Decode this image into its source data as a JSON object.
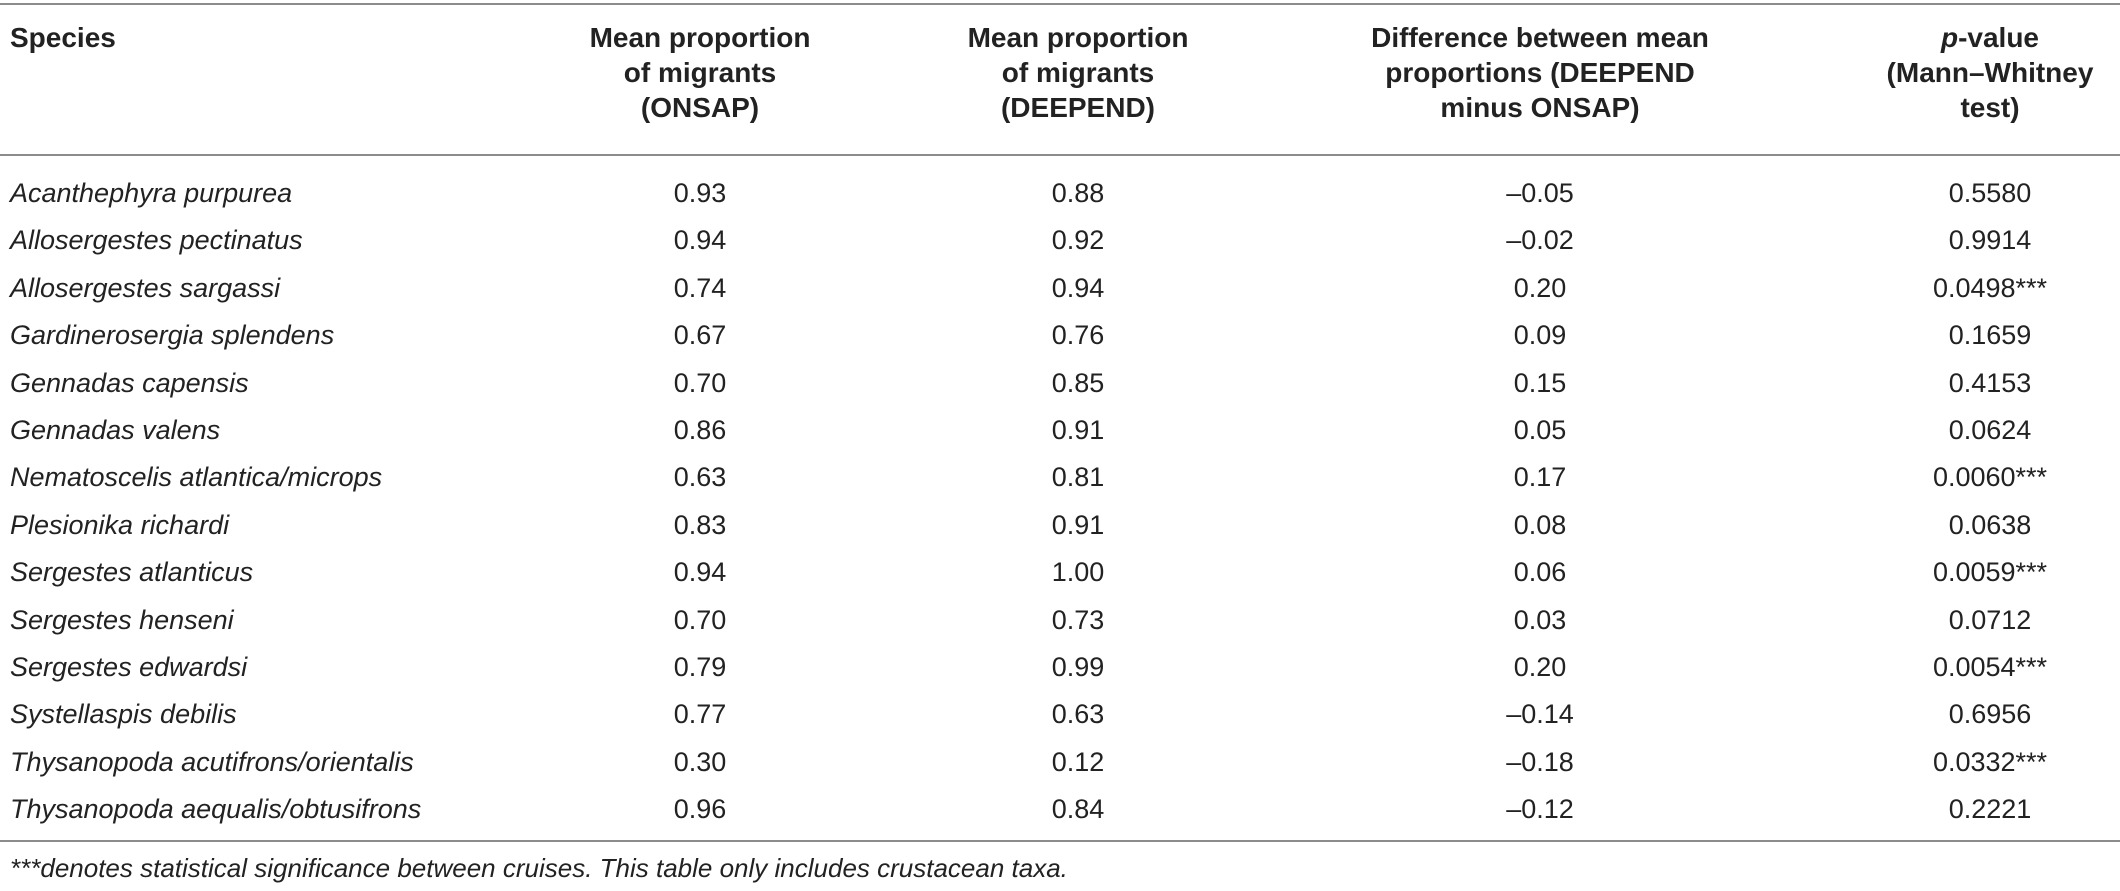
{
  "headers": {
    "species": "Species",
    "onsap": [
      "Mean proportion",
      "of migrants",
      "(ONSAP)"
    ],
    "deepend": [
      "Mean proportion",
      "of migrants",
      "(DEEPEND)"
    ],
    "difference": [
      "Difference between mean",
      "proportions (DEEPEND",
      "minus ONSAP)"
    ],
    "pvalue_italic": "p",
    "pvalue": [
      "-value",
      "(Mann–Whitney",
      "test)"
    ]
  },
  "rows": [
    {
      "species": "Acanthephyra purpurea",
      "onsap": "0.93",
      "deepend": "0.88",
      "diff": "–0.05",
      "p": "0.5580"
    },
    {
      "species": "Allosergestes pectinatus",
      "onsap": "0.94",
      "deepend": "0.92",
      "diff": "–0.02",
      "p": "0.9914"
    },
    {
      "species": "Allosergestes sargassi",
      "onsap": "0.74",
      "deepend": "0.94",
      "diff": "0.20",
      "p": "0.0498***"
    },
    {
      "species": "Gardinerosergia splendens",
      "onsap": "0.67",
      "deepend": "0.76",
      "diff": "0.09",
      "p": "0.1659"
    },
    {
      "species": "Gennadas capensis",
      "onsap": "0.70",
      "deepend": "0.85",
      "diff": "0.15",
      "p": "0.4153"
    },
    {
      "species": "Gennadas valens",
      "onsap": "0.86",
      "deepend": "0.91",
      "diff": "0.05",
      "p": "0.0624"
    },
    {
      "species": "Nematoscelis atlantica/microps",
      "onsap": "0.63",
      "deepend": "0.81",
      "diff": "0.17",
      "p": "0.0060***"
    },
    {
      "species": "Plesionika richardi",
      "onsap": "0.83",
      "deepend": "0.91",
      "diff": "0.08",
      "p": "0.0638"
    },
    {
      "species": "Sergestes atlanticus",
      "onsap": "0.94",
      "deepend": "1.00",
      "diff": "0.06",
      "p": "0.0059***"
    },
    {
      "species": "Sergestes henseni",
      "onsap": "0.70",
      "deepend": "0.73",
      "diff": "0.03",
      "p": "0.0712"
    },
    {
      "species": "Sergestes edwardsi",
      "onsap": "0.79",
      "deepend": "0.99",
      "diff": "0.20",
      "p": "0.0054***"
    },
    {
      "species": "Systellaspis debilis",
      "onsap": "0.77",
      "deepend": "0.63",
      "diff": "–0.14",
      "p": "0.6956"
    },
    {
      "species": "Thysanopoda acutifrons/orientalis",
      "onsap": "0.30",
      "deepend": "0.12",
      "diff": "–0.18",
      "p": "0.0332***"
    },
    {
      "species": "Thysanopoda aequalis/obtusifrons",
      "onsap": "0.96",
      "deepend": "0.84",
      "diff": "–0.12",
      "p": "0.2221"
    }
  ],
  "footnote": "***denotes statistical significance between cruises. This table only includes crustacean taxa."
}
